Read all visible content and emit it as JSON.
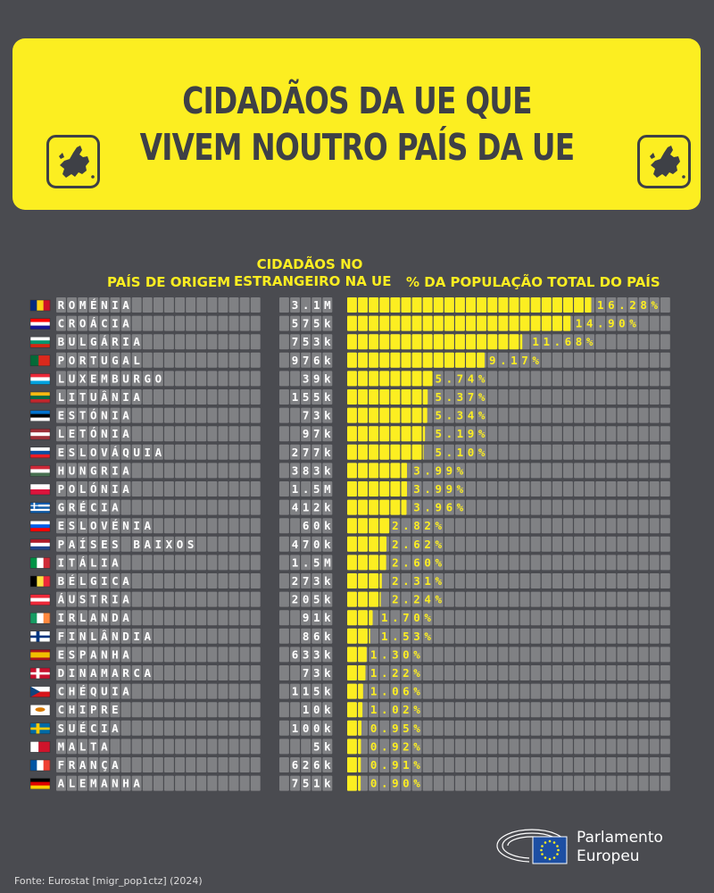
{
  "header": {
    "title_line1": "CIDADÃOS DA UE QUE",
    "title_line2": "VIVEM NOUTRO PAÍS DA UE"
  },
  "columns": {
    "country": "PAÍS DE ORIGEM",
    "citizens_line1": "CIDADÃOS NO",
    "citizens_line2": "ESTRANGEIRO NA UE",
    "percent": "% DA POPULAÇÃO TOTAL DO PAÍS"
  },
  "colors": {
    "background": "#4a4b50",
    "accent": "#fcee21",
    "tile": "#808184",
    "tile_border": "#4a4b50",
    "text": "#ffffff"
  },
  "chart_data": {
    "type": "bar",
    "title": "CIDADÃOS DA UE QUE VIVEM NOUTRO PAÍS DA UE",
    "xlabel": "% DA POPULAÇÃO TOTAL DO PAÍS",
    "categories": [
      "ROMÉNIA",
      "CROÁCIA",
      "BULGÁRIA",
      "PORTUGAL",
      "LUXEMBURGO",
      "LITUÂNIA",
      "ESTÓNIA",
      "LETÓNIA",
      "ESLOVÁQUIA",
      "HUNGRIA",
      "POLÓNIA",
      "GRÉCIA",
      "ESLOVÉNIA",
      "PAÍSES BAIXOS",
      "ITÁLIA",
      "BÉLGICA",
      "ÁUSTRIA",
      "IRLANDA",
      "FINLÂNDIA",
      "ESPANHA",
      "DINAMARCA",
      "CHÉQUIA",
      "CHIPRE",
      "SUÉCIA",
      "MALTA",
      "FRANÇA",
      "ALEMANHA"
    ],
    "citizens_abroad": [
      "3.1M",
      "575k",
      "753k",
      "976k",
      "39k",
      "155k",
      "73k",
      "97k",
      "277k",
      "383k",
      "1.5M",
      "412k",
      "60k",
      "470k",
      "1.5M",
      "273k",
      "205k",
      "91k",
      "86k",
      "633k",
      "73k",
      "115k",
      "10k",
      "100k",
      "5k",
      "626k",
      "751k"
    ],
    "values": [
      16.28,
      14.9,
      11.68,
      9.17,
      5.74,
      5.37,
      5.34,
      5.19,
      5.1,
      3.99,
      3.99,
      3.96,
      2.82,
      2.62,
      2.6,
      2.31,
      2.24,
      1.7,
      1.53,
      1.3,
      1.22,
      1.06,
      1.02,
      0.95,
      0.92,
      0.91,
      0.9
    ],
    "value_labels": [
      "16.28%",
      "14.90%",
      "11.68%",
      "9.17%",
      "5.74%",
      "5.37%",
      "5.34%",
      "5.19%",
      "5.10%",
      "3.99%",
      "3.99%",
      "3.96%",
      "2.82%",
      "2.62%",
      "2.60%",
      "2.31%",
      "2.24%",
      "1.70%",
      "1.53%",
      "1.30%",
      "1.22%",
      "1.06%",
      "1.02%",
      "0.95%",
      "0.92%",
      "0.91%",
      "0.90%"
    ],
    "flags": [
      "ro",
      "hr",
      "bg",
      "pt",
      "lu",
      "lt",
      "ee",
      "lv",
      "sk",
      "hu",
      "pl",
      "gr",
      "si",
      "nl",
      "it",
      "be",
      "at",
      "ie",
      "fi",
      "es",
      "dk",
      "cz",
      "cy",
      "se",
      "mt",
      "fr",
      "de"
    ]
  },
  "footer": {
    "source": "Fonte: Eurostat [migr_pop1ctz] (2024)",
    "logo_line1": "Parlamento",
    "logo_line2": "Europeu"
  }
}
